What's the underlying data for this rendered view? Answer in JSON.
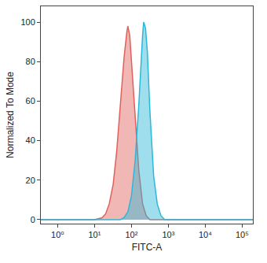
{
  "chart_data": {
    "type": "area",
    "x_label": "FITC-A",
    "y_label": "Normalized To Mode",
    "log": "x",
    "grid": false,
    "xlim": [
      0.35,
      195000
    ],
    "xticks": [
      {
        "value": 1,
        "label": "10⁰"
      },
      {
        "value": 10,
        "label": "10¹"
      },
      {
        "value": 100,
        "label": "10²"
      },
      {
        "value": 1000,
        "label": "10³"
      },
      {
        "value": 10000,
        "label": "10⁴"
      },
      {
        "value": 100000,
        "label": "10⁵"
      }
    ],
    "ylim": [
      -2,
      108
    ],
    "yticks": [
      0,
      20,
      40,
      60,
      80,
      100
    ],
    "series": [
      {
        "color": "#e0605a",
        "x": [
          0.35,
          10,
          16,
          20,
          25,
          32,
          40,
          50,
          63,
          75,
          80,
          90,
          100,
          126,
          158,
          200,
          251,
          316,
          195000
        ],
        "values": [
          0,
          0,
          1,
          3,
          8,
          18,
          35,
          58,
          82,
          95,
          98,
          93,
          80,
          52,
          25,
          8,
          2,
          0,
          0
        ]
      },
      {
        "color": "#2bb8d8",
        "x": [
          0.35,
          50,
          63,
          80,
          100,
          126,
          158,
          180,
          200,
          214,
          240,
          270,
          316,
          400,
          500,
          630,
          800,
          195000
        ],
        "values": [
          0,
          0,
          1,
          4,
          12,
          30,
          58,
          80,
          93,
          100,
          97,
          85,
          55,
          22,
          8,
          2,
          0,
          0
        ]
      }
    ]
  }
}
